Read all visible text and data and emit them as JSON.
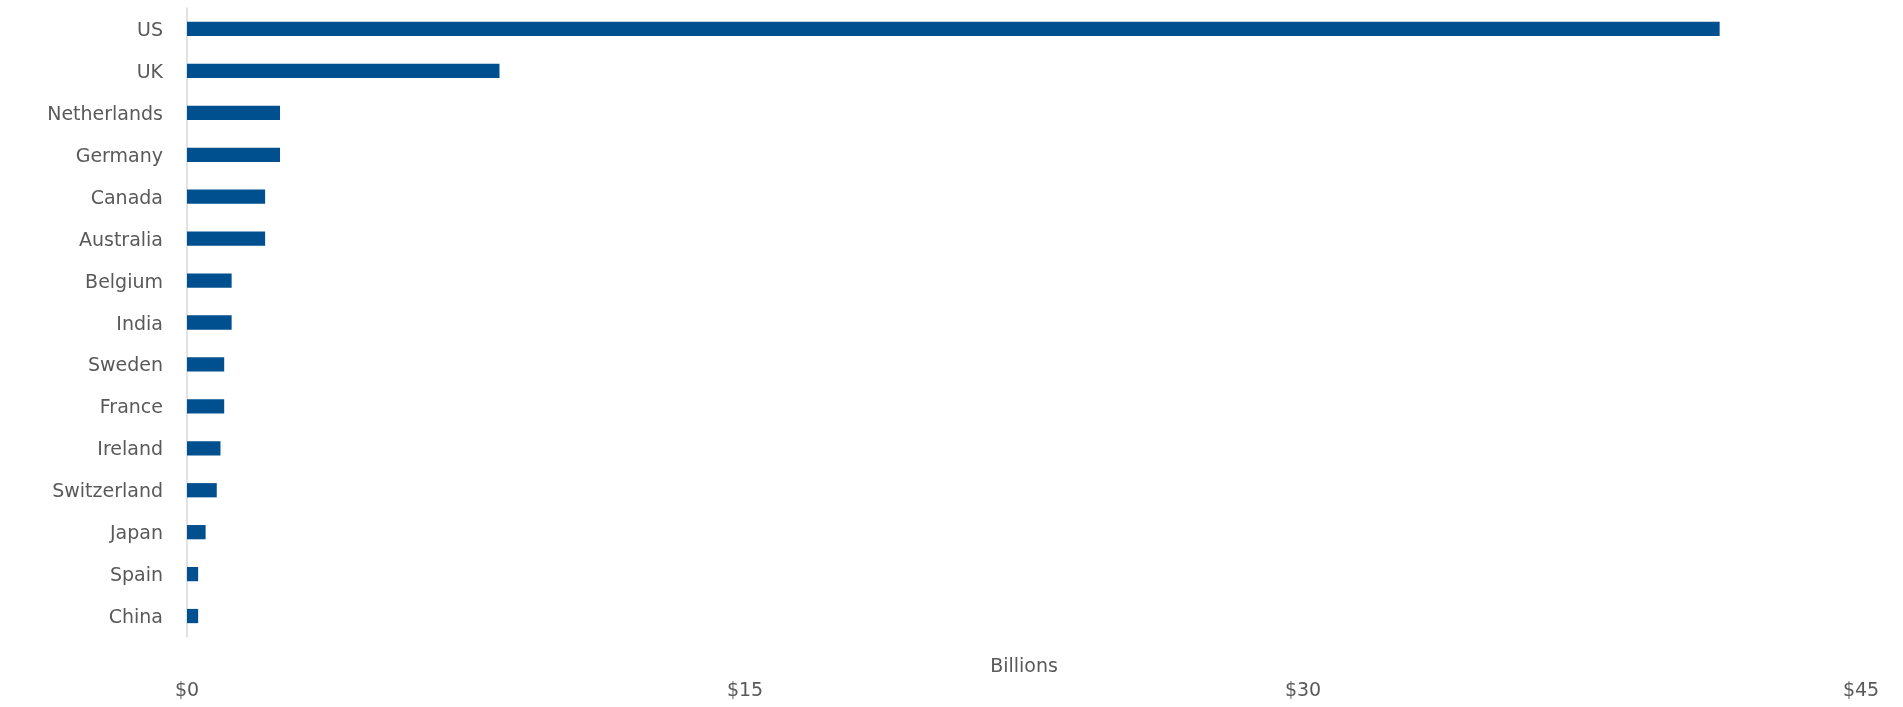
{
  "chart_data": {
    "type": "bar",
    "orientation": "horizontal",
    "xlabel": "Billions",
    "categories": [
      "US",
      "UK",
      "Netherlands",
      "Germany",
      "Canada",
      "Australia",
      "Belgium",
      "India",
      "Sweden",
      "France",
      "Ireland",
      "Switzerland",
      "Japan",
      "Spain",
      "China"
    ],
    "values": [
      41.2,
      8.4,
      2.5,
      2.5,
      2.1,
      2.1,
      1.2,
      1.2,
      1.0,
      1.0,
      0.9,
      0.8,
      0.5,
      0.3,
      0.3
    ],
    "color": "#00508f",
    "xlim": [
      0,
      45
    ],
    "xticks": [
      {
        "value": 0,
        "label": "$0"
      },
      {
        "value": 15,
        "label": "$15"
      },
      {
        "value": 30,
        "label": "$30"
      },
      {
        "value": 45,
        "label": "$45"
      }
    ],
    "grid": false
  }
}
